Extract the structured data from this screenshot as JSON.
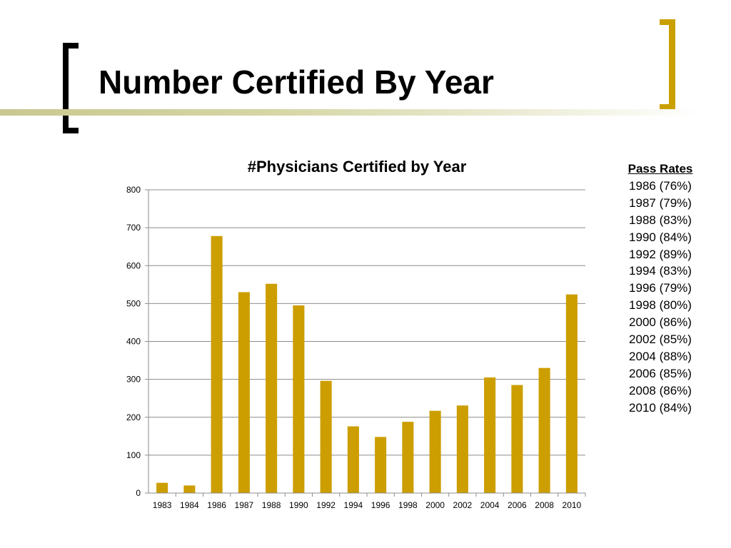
{
  "slide": {
    "title": "Number Certified By Year"
  },
  "pass_rates": {
    "heading": "Pass Rates",
    "items": [
      "1986 (76%)",
      "1987 (79%)",
      "1988 (83%)",
      "1990 (84%)",
      "1992 (89%)",
      "1994 (83%)",
      "1996 (79%)",
      "1998 (80%)",
      "2000 (86%)",
      "2002 (85%)",
      "2004 (88%)",
      "2006 (85%)",
      "2008 (86%)",
      "2010 (84%)"
    ]
  },
  "colors": {
    "bar": "#cc9e00",
    "accent": "#c9a000"
  },
  "chart_data": {
    "type": "bar",
    "title": "#Physicians Certified by Year",
    "xlabel": "",
    "ylabel": "",
    "categories": [
      "1983",
      "1984",
      "1986",
      "1987",
      "1988",
      "1990",
      "1992",
      "1994",
      "1996",
      "1998",
      "2000",
      "2002",
      "2004",
      "2006",
      "2008",
      "2010"
    ],
    "values": [
      27,
      20,
      678,
      530,
      552,
      495,
      296,
      176,
      148,
      188,
      217,
      231,
      305,
      285,
      330,
      524
    ],
    "ylim": [
      0,
      800
    ],
    "yticks": [
      0,
      100,
      200,
      300,
      400,
      500,
      600,
      700,
      800
    ],
    "grid": true,
    "legend": "none"
  }
}
